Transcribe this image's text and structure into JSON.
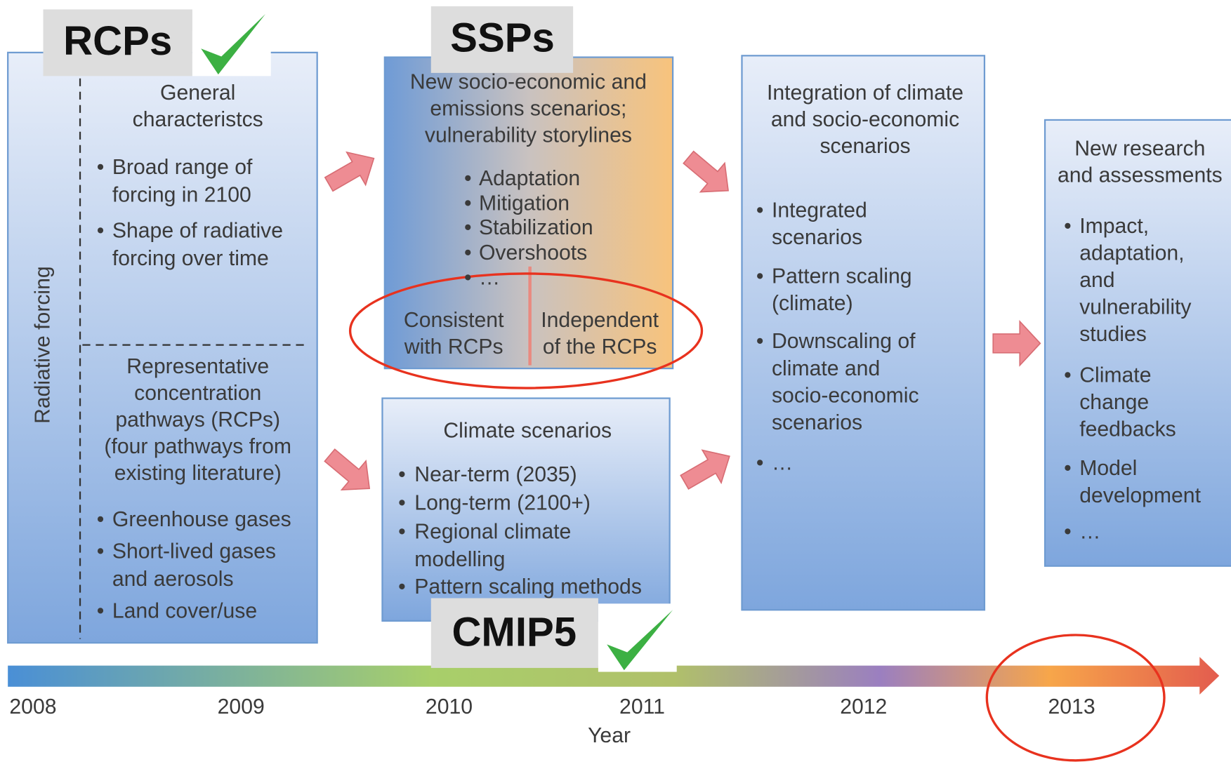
{
  "labels": {
    "rcps": "RCPs",
    "ssps": "SSPs",
    "cmip5": "CMIP5"
  },
  "rcp_box": {
    "side_label": "Radiative forcing",
    "top": {
      "title": [
        "General",
        "characteristcs"
      ],
      "bullets": [
        [
          "Broad range of",
          "forcing in 2100"
        ],
        [
          "Shape of radiative",
          "forcing over time"
        ]
      ]
    },
    "bottom": {
      "title": [
        "Representative",
        "concentration",
        "pathways (RCPs)",
        "(four pathways from",
        "existing literature)"
      ],
      "bullets": [
        [
          "Greenhouse gases"
        ],
        [
          "Short-lived gases",
          "and aerosols"
        ],
        [
          "Land cover/use"
        ]
      ]
    }
  },
  "ssp_box": {
    "title": [
      "New socio-economic and",
      "emissions scenarios;",
      "vulnerability storylines"
    ],
    "bullets": [
      [
        "Adaptation"
      ],
      [
        "Mitigation"
      ],
      [
        "Stabilization"
      ],
      [
        "Overshoots"
      ],
      [
        "…"
      ]
    ],
    "left": [
      "Consistent",
      "with RCPs"
    ],
    "right": [
      "Independent",
      "of the RCPs"
    ]
  },
  "climate_box": {
    "title": [
      "Climate scenarios"
    ],
    "bullets": [
      [
        "Near-term (2035)"
      ],
      [
        "Long-term (2100+)"
      ],
      [
        "Regional climate",
        "modelling"
      ],
      [
        "Pattern scaling methods"
      ]
    ]
  },
  "integration_box": {
    "title": [
      "Integration of climate",
      "and socio-economic",
      "scenarios"
    ],
    "bullets": [
      [
        "Integrated",
        "scenarios"
      ],
      [
        "Pattern scaling",
        "(climate)"
      ],
      [
        "Downscaling of",
        "climate and",
        "socio-economic",
        "scenarios"
      ],
      [
        "…"
      ]
    ]
  },
  "research_box": {
    "title": [
      "New research",
      "and assessments"
    ],
    "bullets": [
      [
        "Impact,",
        "adaptation,",
        "and",
        "vulnerability",
        "studies"
      ],
      [
        "Climate",
        "change",
        "feedbacks"
      ],
      [
        "Model",
        "development"
      ],
      [
        "…"
      ]
    ]
  },
  "timeline": {
    "years": [
      "2008",
      "2009",
      "2010",
      "2011",
      "2012",
      "2013"
    ],
    "axis_label": "Year"
  }
}
